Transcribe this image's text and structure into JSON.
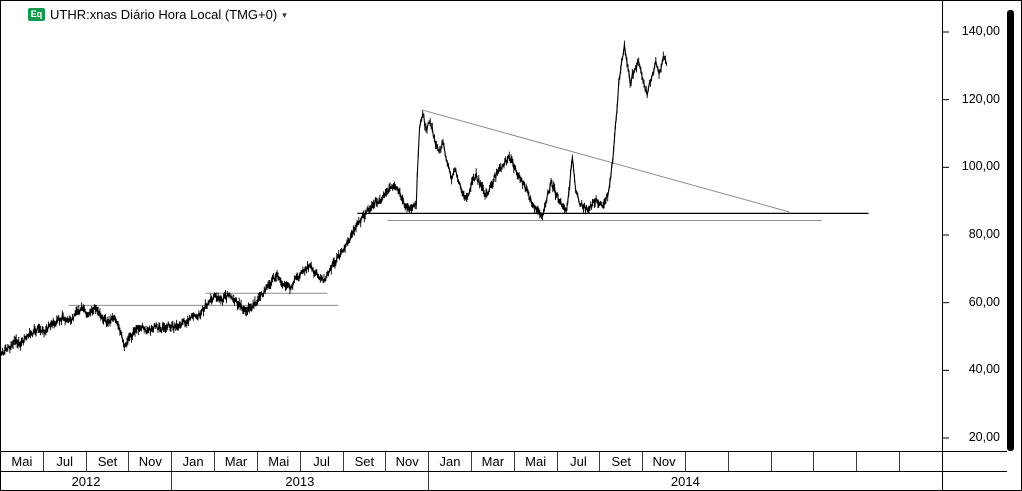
{
  "header": {
    "badge": "Eq",
    "title": "UTHR:xnas Diário Hora Local (TMG+0)",
    "dropdown_icon": "▾"
  },
  "colors": {
    "badge_bg": "#149a4f",
    "price": "#000000",
    "support_major": "#000000",
    "support_minor": "#8c8c8c",
    "trendline": "#8c8c8c"
  },
  "chart_data": {
    "type": "line",
    "title": "UTHR:xnas Diário Hora Local (TMG+0)",
    "instrument": "UTHR:xnas",
    "x_unit": "months since Mai 2012 (daily price bars)",
    "ylim": [
      20,
      140
    ],
    "y_ticks": [
      140,
      120,
      100,
      80,
      60,
      40,
      20
    ],
    "y_tick_labels": [
      "140,00",
      "120,00",
      "100,00",
      "80,00",
      "60,00",
      "40,00",
      "20,00"
    ],
    "x_cells": 22,
    "x_tick_labels": [
      "Mai",
      "Jul",
      "Set",
      "Nov",
      "Jan",
      "Mar",
      "Mai",
      "Jul",
      "Set",
      "Nov",
      "Jan",
      "Mar",
      "Mai",
      "Jul",
      "Set",
      "Nov",
      "",
      "",
      "",
      "",
      "",
      ""
    ],
    "year_sections": [
      {
        "label": "2012",
        "cells": 4
      },
      {
        "label": "2013",
        "cells": 6
      },
      {
        "label": "2014",
        "cells": 12
      }
    ],
    "grid": false,
    "legend": false,
    "volatility": 0.9,
    "points": [
      [
        -0.45,
        44.5
      ],
      [
        -0.2,
        46.5
      ],
      [
        0.0,
        47
      ],
      [
        0.2,
        48.5
      ],
      [
        0.45,
        47.5
      ],
      [
        0.7,
        49.5
      ],
      [
        1.0,
        51
      ],
      [
        1.25,
        52.5
      ],
      [
        1.5,
        51.5
      ],
      [
        1.8,
        53
      ],
      [
        2.1,
        54.5
      ],
      [
        2.4,
        55.5
      ],
      [
        2.7,
        54.5
      ],
      [
        3.0,
        56.5
      ],
      [
        3.3,
        58
      ],
      [
        3.6,
        57
      ],
      [
        3.9,
        58.5
      ],
      [
        4.2,
        56.5
      ],
      [
        4.5,
        54
      ],
      [
        4.8,
        55.5
      ],
      [
        5.05,
        52.5
      ],
      [
        5.3,
        47
      ],
      [
        5.55,
        49.5
      ],
      [
        5.8,
        52
      ],
      [
        6.1,
        53
      ],
      [
        6.4,
        51.5
      ],
      [
        6.7,
        53
      ],
      [
        7.0,
        52
      ],
      [
        7.35,
        53.5
      ],
      [
        7.7,
        52.5
      ],
      [
        8.0,
        54
      ],
      [
        8.35,
        55
      ],
      [
        8.7,
        56
      ],
      [
        9.0,
        58
      ],
      [
        9.3,
        60.5
      ],
      [
        9.6,
        62
      ],
      [
        9.9,
        61
      ],
      [
        10.2,
        62.5
      ],
      [
        10.5,
        60.5
      ],
      [
        10.8,
        58.5
      ],
      [
        11.1,
        58
      ],
      [
        11.45,
        60
      ],
      [
        11.8,
        63
      ],
      [
        12.1,
        65.5
      ],
      [
        12.4,
        68
      ],
      [
        12.7,
        66
      ],
      [
        13.0,
        64.5
      ],
      [
        13.3,
        66.5
      ],
      [
        13.65,
        69
      ],
      [
        13.95,
        71
      ],
      [
        14.25,
        68.5
      ],
      [
        14.55,
        66.5
      ],
      [
        14.85,
        69
      ],
      [
        15.15,
        72
      ],
      [
        15.45,
        75
      ],
      [
        15.75,
        78
      ],
      [
        16.05,
        81.5
      ],
      [
        16.35,
        84.5
      ],
      [
        16.65,
        87
      ],
      [
        16.95,
        89.5
      ],
      [
        17.25,
        90.5
      ],
      [
        17.55,
        92.5
      ],
      [
        17.85,
        94.5
      ],
      [
        18.1,
        93
      ],
      [
        18.35,
        90
      ],
      [
        18.6,
        87.5
      ],
      [
        18.85,
        88.5
      ],
      [
        18.95,
        89.5
      ],
      [
        19.1,
        112
      ],
      [
        19.25,
        116.5
      ],
      [
        19.4,
        111
      ],
      [
        19.6,
        114
      ],
      [
        19.8,
        108
      ],
      [
        20.0,
        105
      ],
      [
        20.2,
        107
      ],
      [
        20.4,
        101
      ],
      [
        20.6,
        97
      ],
      [
        20.8,
        99
      ],
      [
        21.05,
        93.5
      ],
      [
        21.3,
        90.5
      ],
      [
        21.5,
        95
      ],
      [
        21.75,
        97.5
      ],
      [
        22.0,
        94
      ],
      [
        22.25,
        91.5
      ],
      [
        22.5,
        95.5
      ],
      [
        22.75,
        98.5
      ],
      [
        23.05,
        101
      ],
      [
        23.3,
        103
      ],
      [
        23.55,
        100
      ],
      [
        23.8,
        96.5
      ],
      [
        24.05,
        94
      ],
      [
        24.3,
        90
      ],
      [
        24.6,
        87
      ],
      [
        24.85,
        85.5
      ],
      [
        25.05,
        91
      ],
      [
        25.25,
        95.5
      ],
      [
        25.5,
        92
      ],
      [
        25.75,
        89
      ],
      [
        26.0,
        87.5
      ],
      [
        26.25,
        102.5
      ],
      [
        26.4,
        92.5
      ],
      [
        26.6,
        89.5
      ],
      [
        26.9,
        87.8
      ],
      [
        27.15,
        88.5
      ],
      [
        27.4,
        90.5
      ],
      [
        27.65,
        88.5
      ],
      [
        27.9,
        92
      ],
      [
        28.05,
        97.5
      ],
      [
        28.18,
        105
      ],
      [
        28.3,
        115
      ],
      [
        28.42,
        125
      ],
      [
        28.55,
        131.5
      ],
      [
        28.68,
        135.5
      ],
      [
        28.8,
        131
      ],
      [
        28.95,
        125
      ],
      [
        29.15,
        129
      ],
      [
        29.35,
        131.5
      ],
      [
        29.55,
        126
      ],
      [
        29.75,
        121.5
      ],
      [
        29.95,
        127
      ],
      [
        30.15,
        131
      ],
      [
        30.3,
        127.5
      ],
      [
        30.5,
        132
      ],
      [
        30.65,
        130.5
      ]
    ],
    "annotations": [
      {
        "type": "trendline",
        "from_t": 19.2,
        "from_p": 117,
        "to_t": 36.4,
        "to_p": 86.8,
        "color": "#8c8c8c",
        "width": 1
      },
      {
        "type": "hline",
        "p": 86.4,
        "t1": 16.2,
        "t2": 40.1,
        "color": "#000000",
        "width": 1.3
      },
      {
        "type": "hline",
        "p": 84.3,
        "t1": 17.6,
        "t2": 37.9,
        "color": "#8c8c8c",
        "width": 1
      },
      {
        "type": "hline",
        "p": 62.8,
        "t1": 9.1,
        "t2": 14.8,
        "color": "#8c8c8c",
        "width": 1
      },
      {
        "type": "hline",
        "p": 59.2,
        "t1": 2.7,
        "t2": 15.3,
        "color": "#8c8c8c",
        "width": 1
      }
    ]
  }
}
